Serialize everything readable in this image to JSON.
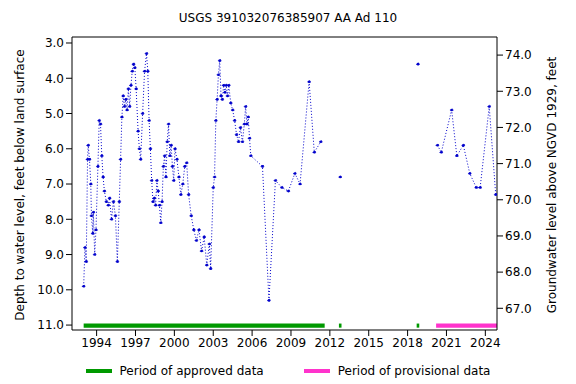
{
  "chart_data": {
    "type": "line",
    "title": "USGS 391032076385907 AA Ad 110",
    "y_label": "Depth to water level, feet below land surface",
    "y2_label": "Groundwater level above NGVD 1929, feet",
    "color": "#0000cc",
    "marker": "circle",
    "line_style": "dotted",
    "legend": "bottom",
    "grid": false,
    "x": [
      1993.0,
      1993.1,
      1993.2,
      1993.3,
      1993.35,
      1993.45,
      1993.55,
      1993.6,
      1993.7,
      1993.75,
      1993.85,
      1993.95,
      1994.1,
      1994.2,
      1994.3,
      1994.4,
      1994.5,
      1994.6,
      1994.75,
      1994.9,
      1995.0,
      1995.15,
      1995.3,
      1995.45,
      1995.6,
      1995.75,
      1995.85,
      1995.95,
      1996.05,
      1996.15,
      1996.25,
      1996.35,
      1996.45,
      1996.55,
      1996.65,
      1996.75,
      1996.85,
      1996.95,
      1997.05,
      1997.2,
      1997.3,
      1997.4,
      1997.55,
      1997.7,
      1997.85,
      1997.95,
      1998.05,
      1998.15,
      1998.25,
      1998.35,
      1998.45,
      1998.55,
      1998.65,
      1998.75,
      1998.85,
      1998.95,
      1999.05,
      1999.15,
      1999.25,
      1999.35,
      1999.45,
      1999.55,
      1999.65,
      1999.75,
      1999.85,
      1999.95,
      2000.05,
      2000.2,
      2000.35,
      2000.5,
      2000.65,
      2000.8,
      2000.95,
      2001.1,
      2001.3,
      2001.5,
      2001.7,
      2001.9,
      2002.1,
      2002.3,
      2002.5,
      2002.7,
      2002.8,
      2003.0,
      2003.1,
      2003.2,
      2003.3,
      2003.4,
      2003.5,
      2003.6,
      2003.7,
      2003.8,
      2003.9,
      2004.0,
      2004.1,
      2004.2,
      2004.35,
      2004.5,
      2004.65,
      2004.8,
      2004.95,
      2005.1,
      2005.25,
      2005.4,
      2005.5,
      2005.6,
      2005.7,
      2005.8,
      2005.9,
      2006.8,
      2007.3,
      2007.8,
      2008.3,
      2008.8,
      2009.3,
      2009.7,
      2010.4,
      2010.8,
      2011.3,
      2012.0,
      2012.8,
      2015.0,
      2018.8,
      2019.5,
      2020.3,
      2020.6,
      2021.4,
      2021.8,
      2022.3,
      2022.8,
      2023.3,
      2023.6,
      2024.3,
      2024.8
    ],
    "values": [
      9.9,
      8.8,
      9.2,
      6.3,
      5.9,
      6.3,
      7.0,
      7.9,
      8.4,
      7.8,
      9.0,
      8.3,
      6.5,
      5.2,
      5.3,
      6.2,
      6.8,
      7.2,
      7.5,
      7.6,
      7.4,
      8.0,
      7.5,
      7.9,
      9.2,
      7.5,
      6.3,
      5.1,
      4.5,
      4.8,
      4.6,
      4.9,
      4.3,
      4.8,
      4.2,
      3.8,
      3.6,
      3.7,
      4.3,
      5.5,
      6.0,
      6.3,
      5.0,
      3.8,
      3.3,
      3.8,
      5.2,
      6.0,
      6.9,
      7.5,
      7.4,
      7.6,
      6.9,
      7.2,
      7.6,
      8.1,
      7.5,
      6.5,
      6.2,
      6.8,
      5.8,
      5.3,
      6.2,
      5.9,
      6.5,
      6.9,
      6.0,
      6.3,
      6.8,
      7.3,
      7.0,
      6.5,
      6.4,
      7.3,
      7.9,
      8.3,
      8.6,
      8.3,
      8.9,
      8.5,
      9.3,
      8.7,
      9.4,
      7.1,
      6.8,
      5.2,
      4.6,
      3.9,
      3.5,
      4.5,
      4.6,
      4.2,
      4.4,
      4.2,
      4.5,
      4.2,
      4.7,
      4.9,
      5.2,
      5.6,
      5.8,
      5.4,
      5.8,
      5.3,
      4.8,
      5.3,
      5.1,
      5.7,
      6.2,
      6.5,
      10.3,
      6.9,
      7.1,
      7.2,
      6.7,
      7.0,
      4.1,
      6.1,
      5.8,
      null,
      6.8,
      null,
      3.6,
      null,
      5.9,
      6.1,
      4.9,
      6.2,
      5.9,
      6.7,
      7.1,
      7.1,
      4.8,
      7.3
    ],
    "xlim": [
      1992.1,
      2024.9
    ],
    "xticks": [
      1994,
      1997,
      2000,
      2003,
      2006,
      2009,
      2012,
      2015,
      2018,
      2021,
      2024
    ],
    "ylim": [
      2.83,
      11.14
    ],
    "yticks": [
      {
        "value": 3,
        "label": "3.0"
      },
      {
        "value": 4,
        "label": "4.0"
      },
      {
        "value": 5,
        "label": "5.0"
      },
      {
        "value": 6,
        "label": "6.0"
      },
      {
        "value": 7,
        "label": "7.0"
      },
      {
        "value": 8,
        "label": "8.0"
      },
      {
        "value": 9,
        "label": "9.0"
      },
      {
        "value": 10,
        "label": "10.0"
      },
      {
        "value": 11,
        "label": "11.0"
      }
    ],
    "y2lim": [
      66.4,
      74.5
    ],
    "y2ticks": [
      {
        "value": 67,
        "label": "67.0"
      },
      {
        "value": 68,
        "label": "68.0"
      },
      {
        "value": 69,
        "label": "69.0"
      },
      {
        "value": 70,
        "label": "70.0"
      },
      {
        "value": 71,
        "label": "71.0"
      },
      {
        "value": 72,
        "label": "72.0"
      },
      {
        "value": 73,
        "label": "73.0"
      },
      {
        "value": 74,
        "label": "74.0"
      }
    ],
    "periods": [
      {
        "label": "Period of approved data",
        "color": "#009900",
        "ranges": [
          [
            1993.0,
            2011.6
          ],
          [
            2012.7,
            2012.9
          ],
          [
            2018.7,
            2018.9
          ]
        ]
      },
      {
        "label": "Period of provisional data",
        "color": "#ff33cc",
        "ranges": [
          [
            2020.2,
            2024.9
          ]
        ]
      }
    ]
  }
}
